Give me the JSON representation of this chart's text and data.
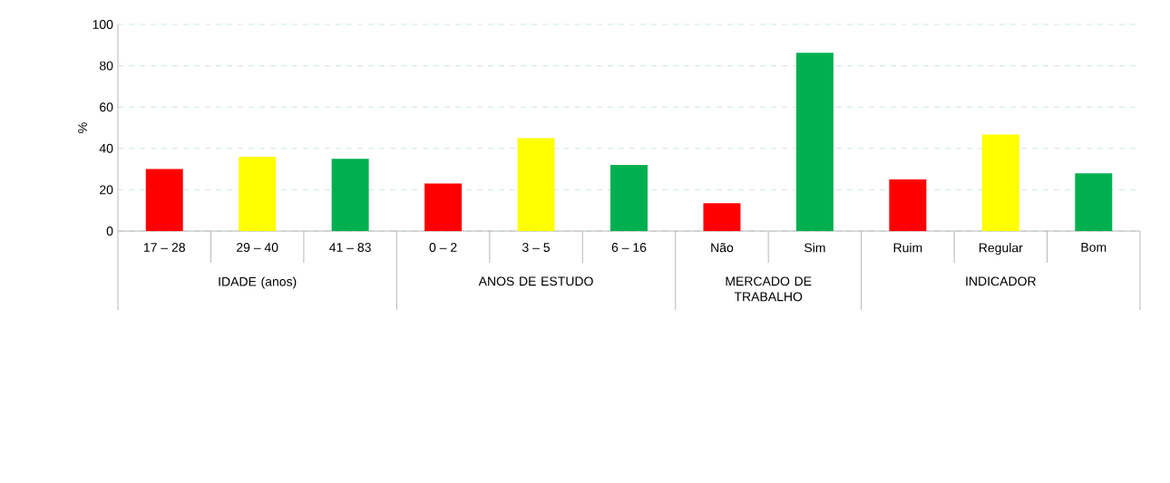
{
  "chart_data": {
    "type": "bar",
    "ylabel": "%",
    "categories": [
      "17 – 28",
      "29 – 40",
      "41 – 83",
      "0 – 2",
      "3 – 5",
      "6 – 16",
      "Não",
      "Sim",
      "Ruim",
      "Regular",
      "Bom"
    ],
    "values": [
      30,
      36,
      35,
      23,
      45,
      32,
      13.5,
      86.3,
      25,
      46.7,
      28
    ],
    "colors": [
      "#ff0000",
      "#ffff00",
      "#00b050",
      "#ff0000",
      "#ffff00",
      "#00b050",
      "#ff0000",
      "#00b050",
      "#ff0000",
      "#ffff00",
      "#00b050"
    ],
    "annotations": [
      "IDADE (anos)",
      "ANOS DE ESTUDO",
      "MERCADO DE TRABALHO",
      "INDICADOR"
    ],
    "ylim": [
      0,
      100
    ],
    "yticks": [
      0,
      20,
      40,
      60,
      80,
      100
    ],
    "grid": "y"
  }
}
